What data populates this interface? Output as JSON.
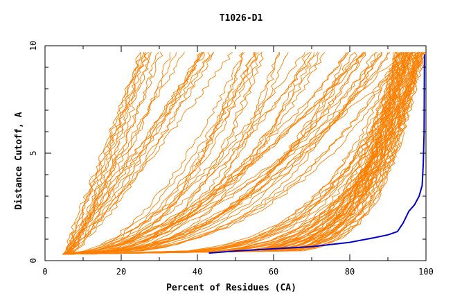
{
  "chart_data": {
    "type": "line",
    "title": "T1026-D1",
    "xlabel": "Percent of Residues (CA)",
    "ylabel": "Distance Cutoff, A",
    "xlim": [
      0,
      100
    ],
    "ylim": [
      0,
      10
    ],
    "x_ticks": [
      "0",
      "20",
      "40",
      "60",
      "80",
      "100"
    ],
    "y_ticks": [
      "0",
      "5",
      "10"
    ],
    "grid": false,
    "legend": "none",
    "colors": {
      "group": "#ff7f00",
      "highlight": "#0000cc"
    },
    "group_curves": {
      "count": 120,
      "shared_start": [
        4.5,
        0.3
      ],
      "clusters": [
        {
          "name": "fast-rise",
          "share": 0.18,
          "x_at_ytop": [
            25,
            50
          ]
        },
        {
          "name": "middle",
          "share": 0.34,
          "x_at_ytop": [
            50,
            97
          ]
        },
        {
          "name": "late-rise",
          "share": 0.48,
          "x_at_ytop": [
            92,
            100
          ]
        }
      ],
      "y_top": 9.7
    },
    "highlight_series": {
      "points": [
        [
          43,
          0.35
        ],
        [
          50,
          0.45
        ],
        [
          60,
          0.55
        ],
        [
          70,
          0.65
        ],
        [
          80,
          0.85
        ],
        [
          86,
          1.05
        ],
        [
          90,
          1.2
        ],
        [
          92.5,
          1.35
        ],
        [
          94,
          1.75
        ],
        [
          95.5,
          2.3
        ],
        [
          97,
          2.6
        ],
        [
          98.2,
          3.0
        ],
        [
          99,
          3.5
        ],
        [
          99.3,
          4.5
        ],
        [
          99.5,
          6.0
        ],
        [
          99.6,
          9.6
        ]
      ]
    }
  }
}
